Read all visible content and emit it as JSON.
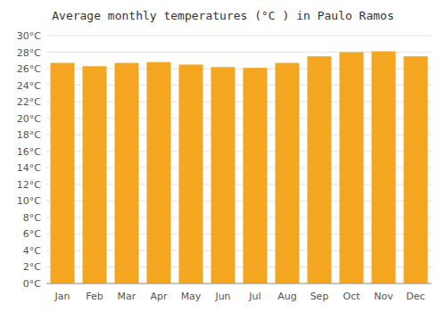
{
  "chart_data": {
    "type": "bar",
    "title": "Average monthly temperatures (°C ) in Paulo Ramos",
    "categories": [
      "Jan",
      "Feb",
      "Mar",
      "Apr",
      "May",
      "Jun",
      "Jul",
      "Aug",
      "Sep",
      "Oct",
      "Nov",
      "Dec"
    ],
    "values": [
      26.7,
      26.3,
      26.7,
      26.8,
      26.5,
      26.2,
      26.1,
      26.7,
      27.5,
      28.0,
      28.1,
      27.5
    ],
    "color": "#F5A621",
    "ylim": [
      0,
      30
    ],
    "yticks": [
      {
        "value": 0,
        "label": "0°C"
      },
      {
        "value": 2,
        "label": "2°C"
      },
      {
        "value": 4,
        "label": "4°C"
      },
      {
        "value": 6,
        "label": "6°C"
      },
      {
        "value": 8,
        "label": "8°C"
      },
      {
        "value": 10,
        "label": "10°C"
      },
      {
        "value": 12,
        "label": "12°C"
      },
      {
        "value": 14,
        "label": "14°C"
      },
      {
        "value": 16,
        "label": "16°C"
      },
      {
        "value": 18,
        "label": "18°C"
      },
      {
        "value": 20,
        "label": "20°C"
      },
      {
        "value": 22,
        "label": "22°C"
      },
      {
        "value": 24,
        "label": "24°C"
      },
      {
        "value": 26,
        "label": "26°C"
      },
      {
        "value": 28,
        "label": "28°C"
      },
      {
        "value": 30,
        "label": "30°C"
      }
    ],
    "grid": true
  }
}
